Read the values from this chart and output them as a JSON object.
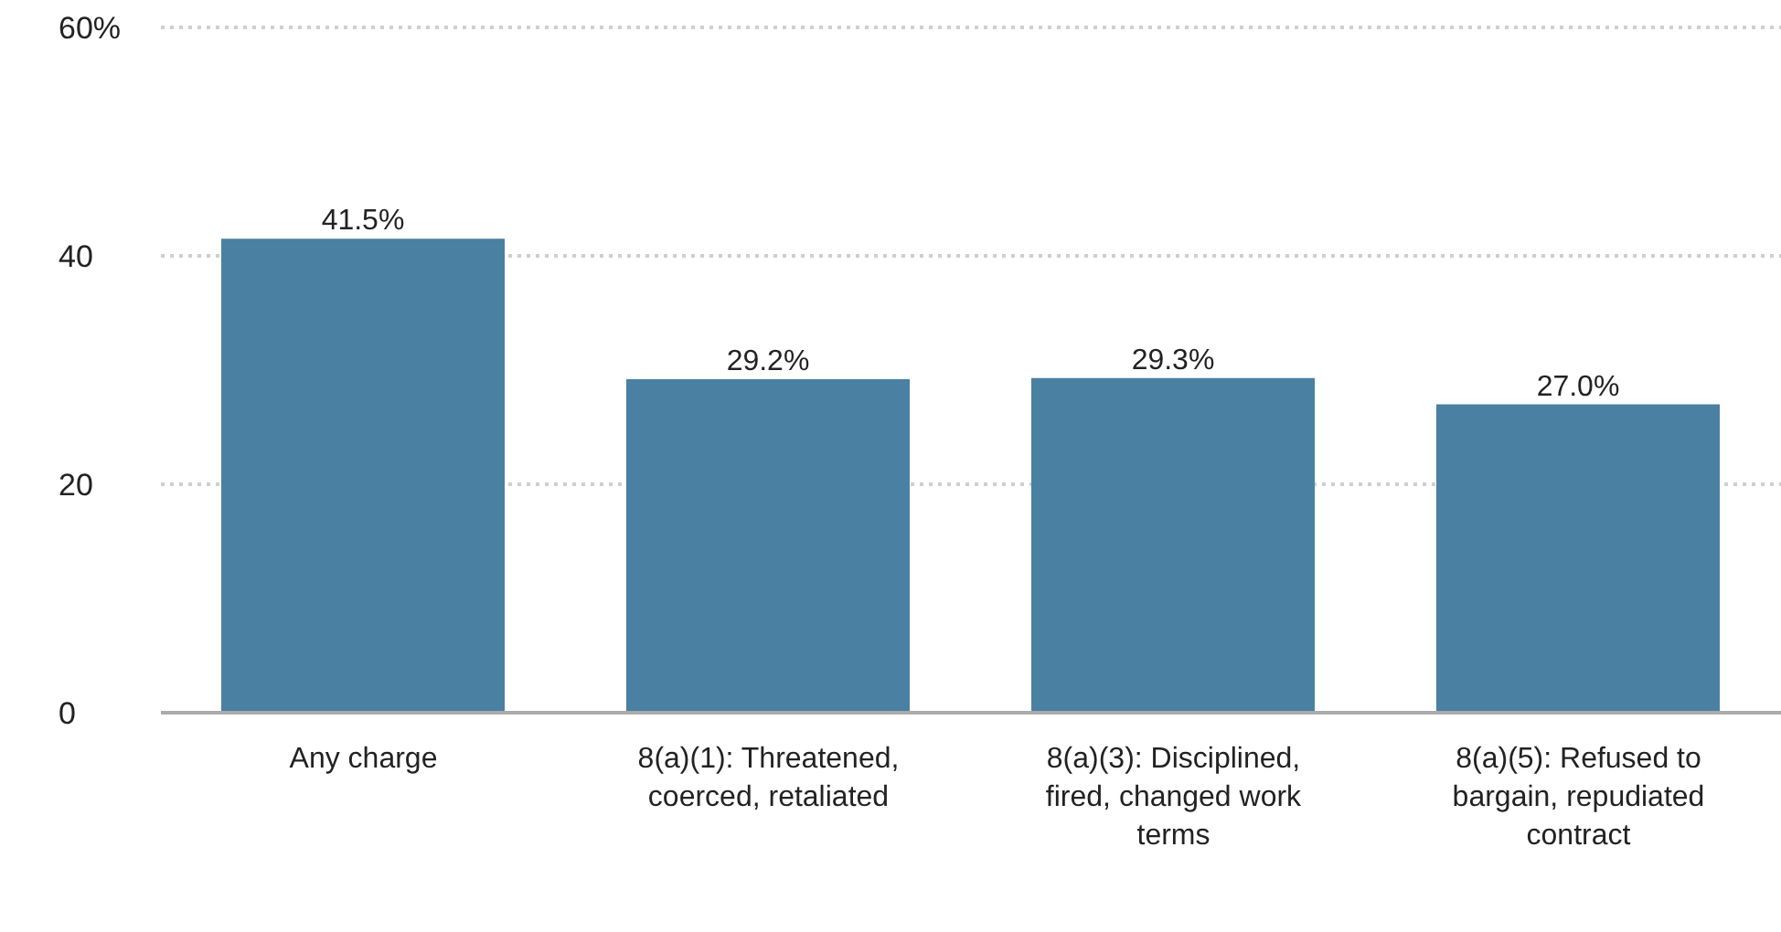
{
  "chart_data": {
    "type": "bar",
    "categories": [
      "Any charge",
      "8(a)(1): Threatened, coerced, retaliated",
      "8(a)(3): Disciplined, fired, changed work terms",
      "8(a)(5): Refused to bargain, repudiated contract"
    ],
    "values": [
      41.5,
      29.2,
      29.3,
      27.0
    ],
    "value_labels": [
      "41.5%",
      "29.2%",
      "29.3%",
      "27.0%"
    ],
    "color": "#4a80a2",
    "ylim": [
      0,
      60
    ],
    "yticks": [
      0,
      20,
      40,
      {
        "value": 60,
        "label": "60%"
      }
    ],
    "grid": "y"
  }
}
